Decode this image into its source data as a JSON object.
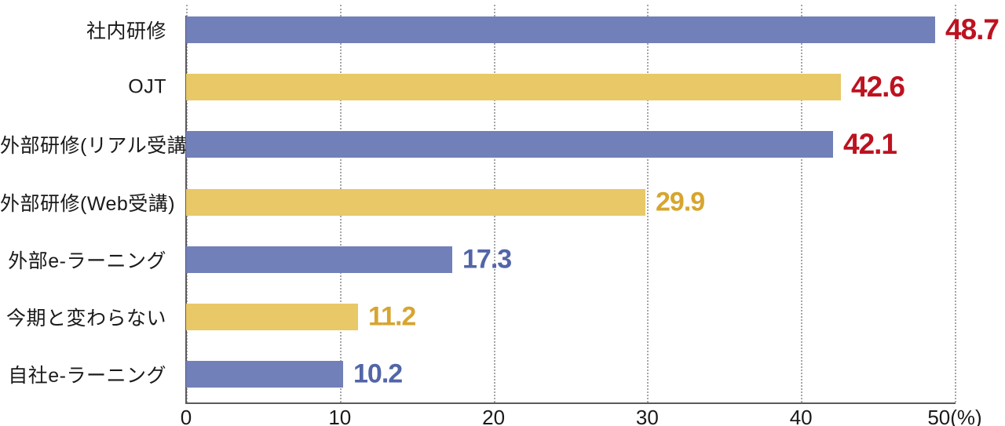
{
  "chart_data": {
    "type": "bar",
    "orientation": "horizontal",
    "title": "",
    "categories": [
      "社内研修",
      "OJT",
      "外部研修(リアル受講)",
      "外部研修(Web受講)",
      "外部e-ラーニング",
      "今期と変わらない",
      "自社e-ラーニング"
    ],
    "values": [
      48.7,
      42.6,
      42.1,
      29.9,
      17.3,
      11.2,
      10.2
    ],
    "value_labels": [
      "48.7",
      "42.6",
      "42.1",
      "29.9",
      "17.3",
      "11.2",
      "10.2"
    ],
    "xlabel": "(%)",
    "xlim": [
      0,
      50
    ],
    "ticks": [
      0,
      10,
      20,
      30,
      40,
      50
    ],
    "tick_labels": [
      "0",
      "10",
      "20",
      "30",
      "40",
      "50(%)"
    ],
    "grid": "vertical dotted",
    "legend": "none",
    "bar_colors": [
      "#7280b9",
      "#e9c868",
      "#7280b9",
      "#e9c868",
      "#7280b9",
      "#e9c868",
      "#7280b9"
    ],
    "value_colors": [
      "#bd1220",
      "#bd1220",
      "#bd1220",
      "#d7a52f",
      "#5265a8",
      "#d7a52f",
      "#5265a8"
    ],
    "colors": {
      "bar_blue": "#7280b9",
      "bar_yellow": "#e9c868",
      "value_red": "#bd1220",
      "value_gold": "#d7a52f",
      "value_blue": "#5265a8",
      "axis": "#5a5a5c",
      "gridline": "#a6a6a6",
      "text": "#1a1a1a"
    }
  }
}
